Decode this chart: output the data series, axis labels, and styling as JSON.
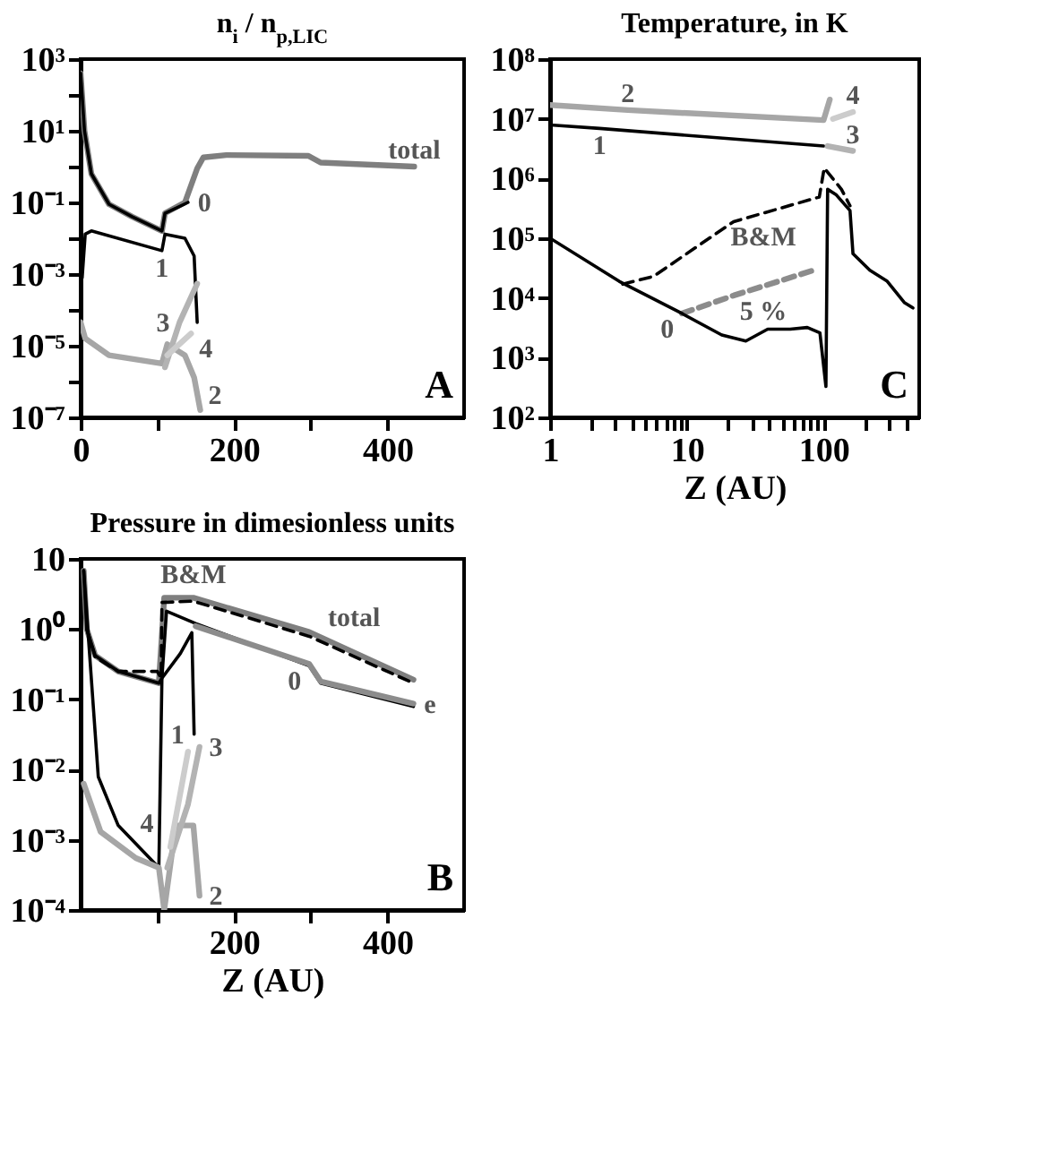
{
  "chart_data": [
    {
      "type": "line",
      "title": "n$_{i}$ / n$_{p,LIC}$",
      "log": "y",
      "xlim": [
        0,
        500
      ],
      "ylim": [
        1e-07,
        1000
      ],
      "xticks": [
        0,
        {
          "value": 100,
          "label": null
        },
        200,
        {
          "value": 300,
          "label": null
        },
        400
      ],
      "yticks": [
        {
          "value": 1e-07,
          "label": "10⁻⁷"
        },
        {
          "value": 1e-06,
          "label": null
        },
        {
          "value": 1e-05,
          "label": "10⁻⁵"
        },
        {
          "value": 0.0001,
          "label": null
        },
        {
          "value": 0.001,
          "label": "10⁻³"
        },
        {
          "value": 0.01,
          "label": null
        },
        {
          "value": 0.1,
          "label": "10⁻¹"
        },
        {
          "value": 1,
          "label": null
        },
        {
          "value": 10,
          "label": "10¹"
        },
        {
          "value": 100,
          "label": null
        },
        {
          "value": 1000,
          "label": "10³"
        }
      ],
      "series": [
        {
          "color": "#7f7f7f",
          "x": [
            0,
            5,
            14,
            37,
            67,
            106,
            110,
            136,
            152,
            160,
            190,
            297,
            313,
            435
          ],
          "values": [
            400,
            10,
            0.63,
            0.089,
            0.04,
            0.016,
            0.05,
            0.1,
            0.89,
            1.8,
            2.1,
            2,
            1.3,
            1
          ]
        },
        {
          "color": "#000000",
          "x": [
            0,
            5,
            14,
            37,
            67,
            106,
            110,
            125,
            140
          ],
          "values": [
            400,
            10,
            0.63,
            0.089,
            0.04,
            0.016,
            0.05,
            0.07,
            0.1
          ]
        },
        {
          "color": "#000000",
          "x": [
            2,
            6,
            14,
            106,
            110,
            136,
            148,
            152
          ],
          "values": [
            0.00079,
            0.013,
            0.016,
            0.0045,
            0.013,
            0.01,
            0.0032,
            4.5e-05
          ]
        },
        {
          "color": "#a6a6a6",
          "x": [
            0,
            6,
            37,
            106,
            113,
            136,
            148,
            156
          ],
          "values": [
            4.5e-05,
            1.6e-05,
            5.4e-06,
            3.2e-06,
            1.1e-05,
            5.4e-06,
            1.3e-06,
            1.6e-07
          ]
        },
        {
          "color": "#b3b3b3",
          "x": [
            110,
            129,
            152
          ],
          "values": [
            2.5e-06,
            4.5e-05,
            0.00054
          ]
        },
        {
          "color": "#cccccc",
          "x": [
            113,
            144
          ],
          "values": [
            5.4e-06,
            2.2e-05
          ]
        }
      ],
      "annotations": [
        {
          "text": "total",
          "x": 435,
          "y": 1
        },
        {
          "text": "0",
          "x": 140,
          "y": 0.1
        },
        {
          "text": "1",
          "x": 106,
          "y": 0.0045
        },
        {
          "text": "3",
          "x": 129,
          "y": 4.5e-05
        },
        {
          "text": "4",
          "x": 144,
          "y": 2.2e-05
        },
        {
          "text": "2",
          "x": 156,
          "y": 1.6e-07
        },
        "A"
      ]
    },
    {
      "type": "line",
      "title": "Temperature, in K",
      "xlabel": "Z (AU)",
      "log": "xy",
      "xlim": [
        1,
        500
      ],
      "ylim": [
        100,
        100000000.0
      ],
      "xticks": [
        1,
        {
          "value": 2,
          "label": null
        },
        {
          "value": 3,
          "label": null
        },
        {
          "value": 4,
          "label": null
        },
        {
          "value": 5,
          "label": null
        },
        {
          "value": 6,
          "label": null
        },
        {
          "value": 7,
          "label": null
        },
        {
          "value": 8,
          "label": null
        },
        {
          "value": 9,
          "label": null
        },
        10,
        {
          "value": 20,
          "label": null
        },
        {
          "value": 30,
          "label": null
        },
        {
          "value": 40,
          "label": null
        },
        {
          "value": 50,
          "label": null
        },
        {
          "value": 60,
          "label": null
        },
        {
          "value": 70,
          "label": null
        },
        {
          "value": 80,
          "label": null
        },
        {
          "value": 90,
          "label": null
        },
        100,
        {
          "value": 200,
          "label": null
        },
        {
          "value": 300,
          "label": null
        },
        {
          "value": 400,
          "label": null
        }
      ],
      "yticks": [
        {
          "value": 100,
          "label": "10²"
        },
        {
          "value": 1000,
          "label": "10³"
        },
        {
          "value": 10000,
          "label": "10⁴"
        },
        {
          "value": 100000,
          "label": "10⁵"
        },
        {
          "value": 1000000,
          "label": "10⁶"
        },
        {
          "value": 10000000,
          "label": "10⁷"
        },
        {
          "value": 100000000,
          "label": "10⁸"
        }
      ],
      "series": [
        {
          "color": "#000000",
          "x": [
            1,
            2.3,
            100
          ],
          "values": [
            7900000,
            6900000,
            3500000
          ]
        },
        {
          "color": "#a6a6a6",
          "x": [
            1,
            3.7,
            100,
            111
          ],
          "values": [
            17000000,
            14000000,
            9500000,
            21000000
          ]
        },
        {
          "color": "#b3b3b3",
          "x": [
            107,
            164
          ],
          "values": [
            3500000,
            2900000
          ]
        },
        {
          "color": "#cccccc",
          "x": [
            117,
            164
          ],
          "values": [
            10000000,
            13000000
          ]
        },
        {
          "color": "#000000",
          "line_style": "dashed",
          "x": [
            3.4,
            5.7,
            22,
            93,
            101,
            135,
            156
          ],
          "values": [
            17000,
            23000,
            190000,
            490000,
            1500000,
            660000,
            350000
          ]
        },
        {
          "color": "#8c8c8c",
          "line_style": "dashed",
          "x": [
            9.2,
            22,
            84
          ],
          "values": [
            5500,
            11000,
            29000
          ]
        },
        {
          "color": "#000000",
          "x": [
            1,
            3.2,
            9.2,
            18,
            27,
            39,
            57,
            76,
            94,
            104,
            107,
            123,
            156,
            164,
            218,
            292,
            391,
            450
          ],
          "values": [
            100000,
            19000,
            5500,
            2400,
            1900,
            3000,
            3000,
            3200,
            2600,
            330,
            660000,
            540000,
            290000,
            55000,
            29000,
            19000,
            8300,
            6800
          ]
        }
      ],
      "annotations": [
        {
          "text": "2",
          "x": 3.7,
          "y": 14000000
        },
        {
          "text": "1",
          "x": 2.3,
          "y": 6900000
        },
        {
          "text": "B&M",
          "x": 22,
          "y": 190000
        },
        {
          "text": "5 %",
          "x": 22,
          "y": 11000
        },
        {
          "text": "0",
          "x": 9.2,
          "y": 5500
        },
        {
          "text": "3",
          "x": 164,
          "y": 2900000
        },
        {
          "text": "4",
          "x": 164,
          "y": 13000000
        },
        "C"
      ]
    },
    {
      "type": "line",
      "title": "Pressure in dimesionless units",
      "xlabel": "Z (AU)",
      "log": "y",
      "xlim": [
        0,
        500
      ],
      "ylim": [
        0.0001,
        10
      ],
      "xticks": [
        {
          "value": 100,
          "label": null
        },
        200,
        {
          "value": 300,
          "label": null
        },
        400
      ],
      "yticks": [
        {
          "value": 0.0001,
          "label": "10⁻⁴"
        },
        {
          "value": 0.001,
          "label": "10⁻³"
        },
        {
          "value": 0.01,
          "label": "10⁻²"
        },
        {
          "value": 0.1,
          "label": "10⁻¹"
        },
        {
          "value": 1,
          "label": "10⁰"
        },
        10
      ],
      "series": [
        {
          "color": "#7f7f7f",
          "x": [
            4,
            8,
            19,
            49,
            102,
            109,
            147,
            298,
            434
          ],
          "values": [
            6.8,
            1,
            0.42,
            0.25,
            0.17,
            2.8,
            2.8,
            0.91,
            0.19
          ]
        },
        {
          "color": "#000000",
          "line_style": "dashed",
          "x": [
            8,
            19,
            49,
            100,
            105,
            106,
            147,
            298,
            434
          ],
          "values": [
            1,
            0.4,
            0.25,
            0.25,
            0.2,
            2.4,
            2.5,
            0.79,
            0.17
          ]
        },
        {
          "color": "#000000",
          "x": [
            4,
            8,
            19,
            49,
            102,
            106,
            112,
            150,
            298,
            313,
            434
          ],
          "values": [
            6.8,
            1,
            0.42,
            0.25,
            0.17,
            0.2,
            1.8,
            1.2,
            0.3,
            0.17,
            0.079
          ]
        },
        {
          "color": "#8c8c8c",
          "x": [
            150,
            298,
            313,
            434
          ],
          "values": [
            1.1,
            0.32,
            0.18,
            0.087
          ]
        },
        {
          "color": "#000000",
          "x": [
            4,
            23,
            49,
            102,
            106,
            130,
            145,
            148
          ],
          "values": [
            6.8,
            0.0079,
            0.0016,
            0.0004,
            0.2,
            0.45,
            0.89,
            0.032
          ]
        },
        {
          "color": "#a6a6a6",
          "x": [
            4,
            26,
            72,
            102,
            109,
            124,
            147,
            155
          ],
          "values": [
            0.0063,
            0.0013,
            0.00055,
            0.0004,
            0.0001,
            0.0016,
            0.0016,
            0.00016
          ]
        },
        {
          "color": "#b3b3b3",
          "x": [
            113,
            140,
            155
          ],
          "values": [
            0.0004,
            0.0032,
            0.021
          ]
        },
        {
          "color": "#cccccc",
          "x": [
            117,
            140
          ],
          "values": [
            0.00079,
            0.018
          ]
        }
      ],
      "annotations": [
        {
          "text": "B&M",
          "x": 147,
          "y": 2.5
        },
        {
          "text": "total",
          "x": 298,
          "y": 0.91
        },
        {
          "text": "1",
          "x": 148,
          "y": 0.032
        },
        {
          "text": "0",
          "x": 298,
          "y": 0.3
        },
        {
          "text": "e",
          "x": 434,
          "y": 0.087
        },
        {
          "text": "3",
          "x": 155,
          "y": 0.021
        },
        {
          "text": "4",
          "x": 117,
          "y": 0.00079
        },
        {
          "text": "2",
          "x": 155,
          "y": 0.00016
        },
        "B"
      ]
    }
  ]
}
